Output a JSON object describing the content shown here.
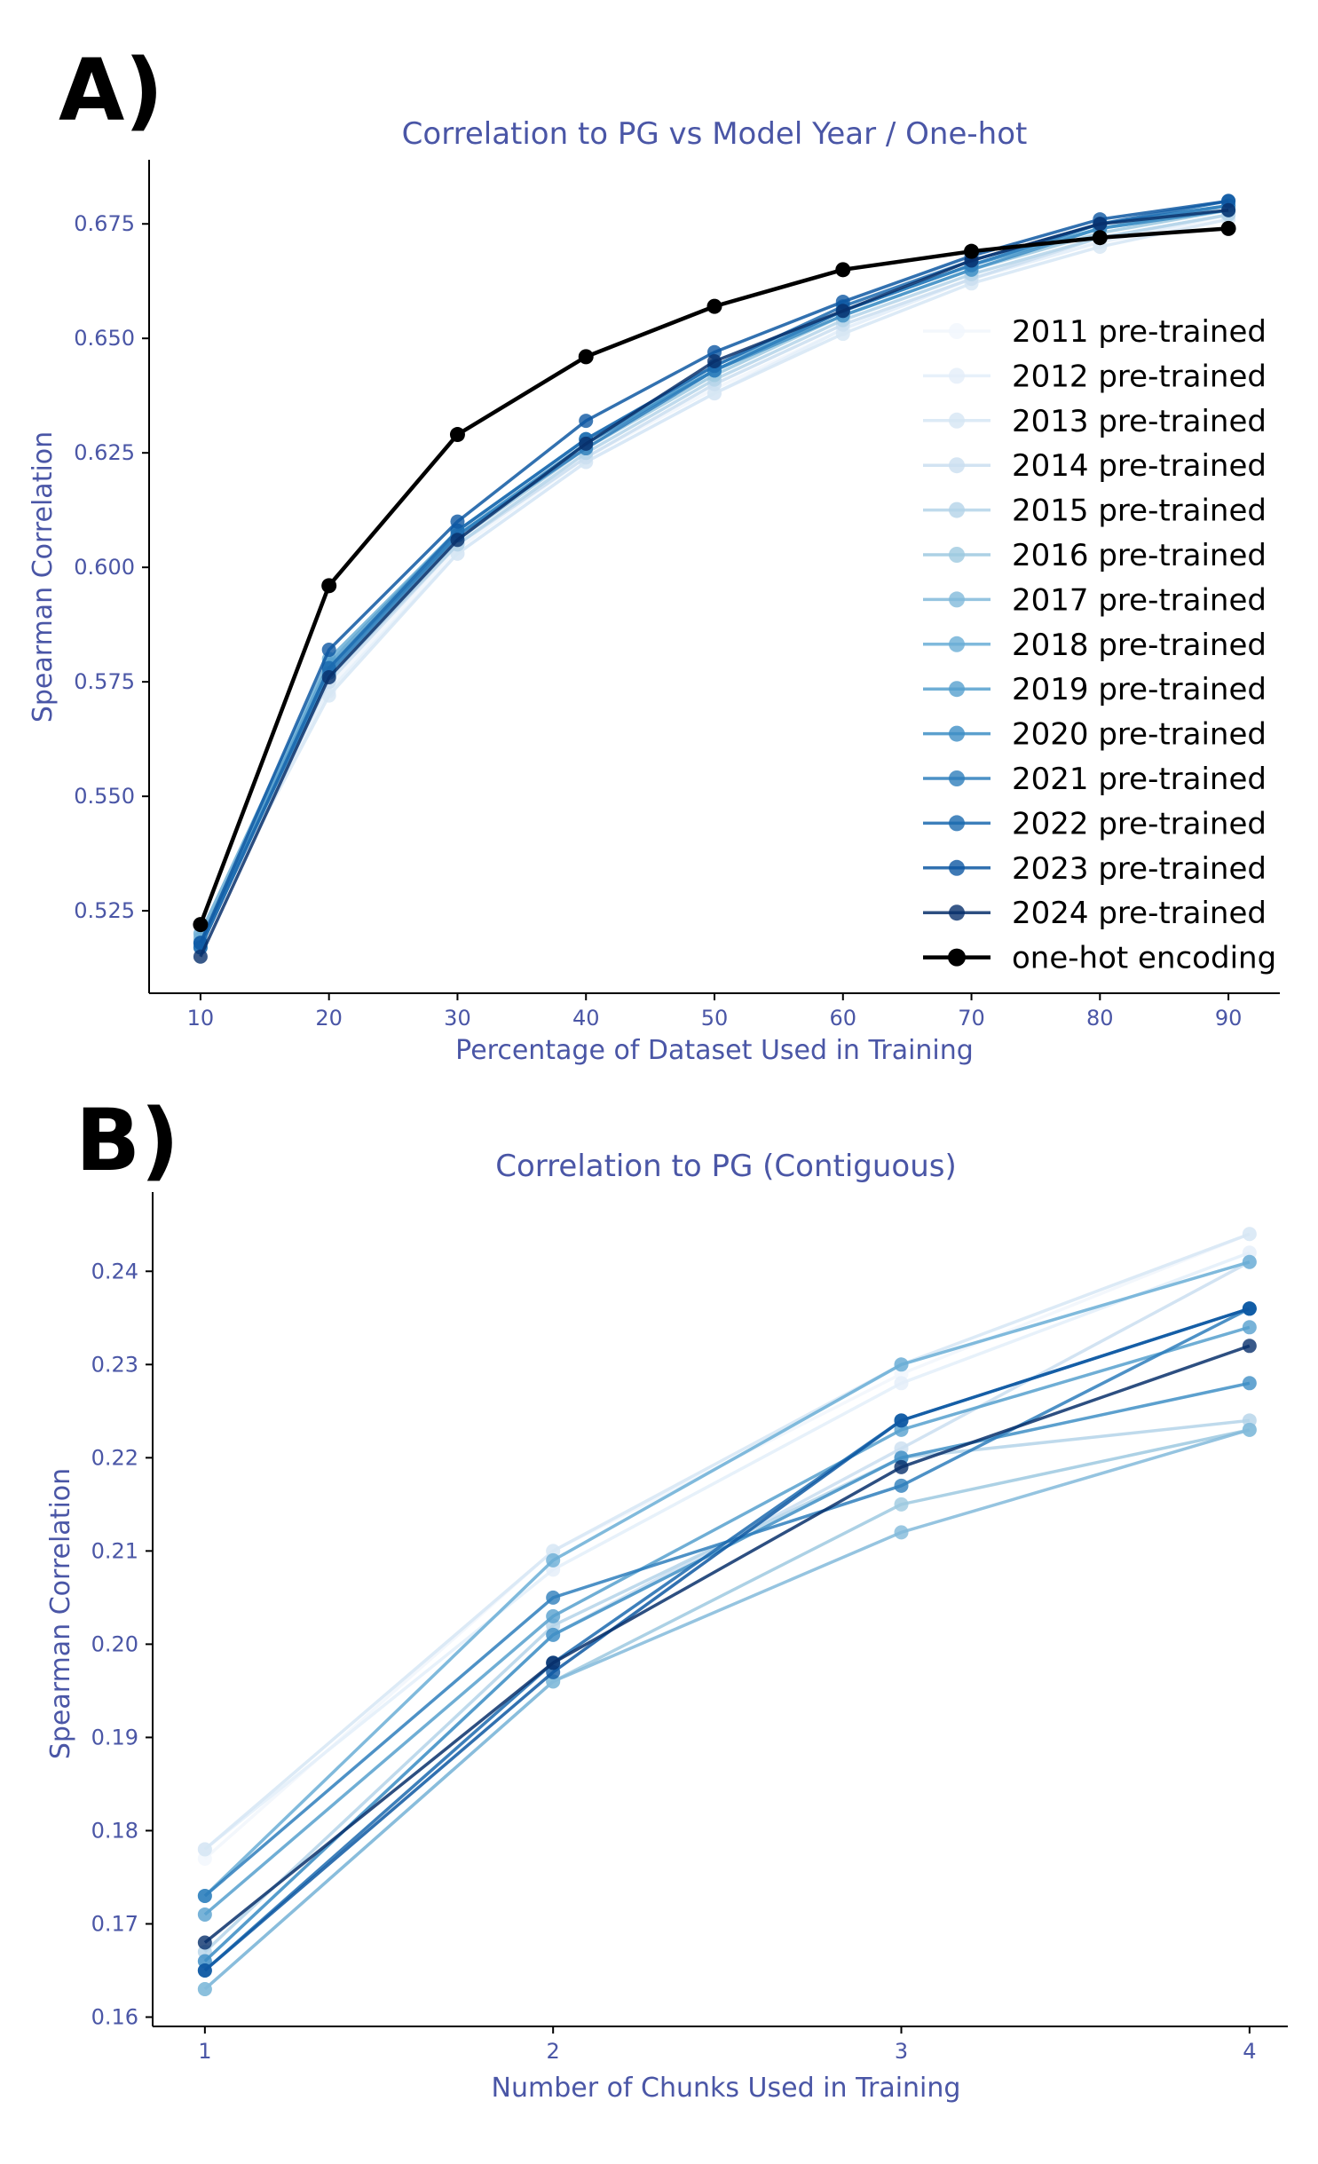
{
  "chart_data": [
    {
      "panel": "A)",
      "type": "line",
      "title": "Correlation to PG vs Model Year / One-hot",
      "xlabel": "Percentage of Dataset Used in Training",
      "ylabel": "Spearman Correlation",
      "x": [
        10,
        20,
        30,
        40,
        50,
        60,
        70,
        80,
        90
      ],
      "xticks": [
        "10",
        "20",
        "30",
        "40",
        "50",
        "60",
        "70",
        "80",
        "90"
      ],
      "yticks": [
        "0.525",
        "0.550",
        "0.575",
        "0.600",
        "0.625",
        "0.650",
        "0.675"
      ],
      "xlim": [
        6,
        94
      ],
      "ylim": [
        0.507,
        0.689
      ],
      "legend_position": "right",
      "series": [
        {
          "name": "2011 pre-trained",
          "color": "#f1f6fc",
          "values": [
            0.521,
            0.574,
            0.604,
            0.624,
            0.639,
            0.652,
            0.663,
            0.671,
            0.676
          ]
        },
        {
          "name": "2012 pre-trained",
          "color": "#e3eef9",
          "values": [
            0.52,
            0.573,
            0.603,
            0.623,
            0.638,
            0.652,
            0.663,
            0.671,
            0.677
          ]
        },
        {
          "name": "2013 pre-trained",
          "color": "#d6e6f4",
          "values": [
            0.519,
            0.572,
            0.603,
            0.623,
            0.638,
            0.651,
            0.662,
            0.67,
            0.676
          ]
        },
        {
          "name": "2014 pre-trained",
          "color": "#cadef0",
          "values": [
            0.519,
            0.575,
            0.605,
            0.624,
            0.64,
            0.653,
            0.663,
            0.672,
            0.677
          ]
        },
        {
          "name": "2015 pre-trained",
          "color": "#b4d3e9",
          "values": [
            0.518,
            0.576,
            0.605,
            0.625,
            0.641,
            0.654,
            0.664,
            0.672,
            0.677
          ]
        },
        {
          "name": "2016 pre-trained",
          "color": "#9dc9e0",
          "values": [
            0.518,
            0.577,
            0.606,
            0.626,
            0.642,
            0.655,
            0.665,
            0.673,
            0.678
          ]
        },
        {
          "name": "2017 pre-trained",
          "color": "#82badb",
          "values": [
            0.519,
            0.578,
            0.607,
            0.627,
            0.643,
            0.656,
            0.666,
            0.674,
            0.678
          ]
        },
        {
          "name": "2018 pre-trained",
          "color": "#6aaed6",
          "values": [
            0.52,
            0.58,
            0.608,
            0.628,
            0.644,
            0.656,
            0.666,
            0.675,
            0.679
          ]
        },
        {
          "name": "2019 pre-trained",
          "color": "#56a0ce",
          "values": [
            0.518,
            0.579,
            0.608,
            0.628,
            0.643,
            0.656,
            0.666,
            0.674,
            0.679
          ]
        },
        {
          "name": "2020 pre-trained",
          "color": "#3f8fc5",
          "values": [
            0.517,
            0.578,
            0.607,
            0.627,
            0.643,
            0.655,
            0.665,
            0.674,
            0.678
          ]
        },
        {
          "name": "2021 pre-trained",
          "color": "#2e7ebc",
          "values": [
            0.518,
            0.577,
            0.607,
            0.626,
            0.643,
            0.656,
            0.666,
            0.675,
            0.679
          ]
        },
        {
          "name": "2022 pre-trained",
          "color": "#1c6aaf",
          "values": [
            0.517,
            0.578,
            0.608,
            0.628,
            0.644,
            0.657,
            0.667,
            0.675,
            0.68
          ]
        },
        {
          "name": "2023 pre-trained",
          "color": "#0e58a2",
          "values": [
            0.518,
            0.582,
            0.61,
            0.632,
            0.647,
            0.658,
            0.668,
            0.676,
            0.68
          ]
        },
        {
          "name": "2024 pre-trained",
          "color": "#08306b",
          "values": [
            0.515,
            0.576,
            0.606,
            0.627,
            0.645,
            0.656,
            0.667,
            0.675,
            0.678
          ]
        },
        {
          "name": "one-hot encoding",
          "color": "#000000",
          "values": [
            0.522,
            0.596,
            0.629,
            0.646,
            0.657,
            0.665,
            0.669,
            0.672,
            0.674
          ]
        }
      ]
    },
    {
      "panel": "B)",
      "type": "line",
      "title": "Correlation to PG (Contiguous)",
      "xlabel": "Number of Chunks Used in Training",
      "ylabel": "Spearman Correlation",
      "x": [
        1,
        2,
        3,
        4
      ],
      "xticks": [
        "1",
        "2",
        "3",
        "4"
      ],
      "yticks": [
        "0.16",
        "0.17",
        "0.18",
        "0.19",
        "0.20",
        "0.21",
        "0.22",
        "0.23",
        "0.24"
      ],
      "xlim": [
        0.85,
        4.11
      ],
      "ylim": [
        0.159,
        0.2485
      ],
      "series": [
        {
          "color": "#f1f6fc",
          "values": [
            0.177,
            0.21,
            0.229,
            0.244
          ]
        },
        {
          "color": "#e3eef9",
          "values": [
            0.178,
            0.208,
            0.228,
            0.242
          ]
        },
        {
          "color": "#d6e6f4",
          "values": [
            0.178,
            0.21,
            0.23,
            0.244
          ]
        },
        {
          "color": "#cadef0",
          "values": [
            0.166,
            0.201,
            0.221,
            0.241
          ]
        },
        {
          "color": "#b4d3e9",
          "values": [
            0.167,
            0.202,
            0.22,
            0.224
          ]
        },
        {
          "color": "#9dc9e0",
          "values": [
            0.163,
            0.196,
            0.215,
            0.223
          ]
        },
        {
          "color": "#82badb",
          "values": [
            0.163,
            0.196,
            0.212,
            0.223
          ]
        },
        {
          "color": "#6aaed6",
          "values": [
            0.173,
            0.209,
            0.23,
            0.241
          ]
        },
        {
          "color": "#56a0ce",
          "values": [
            0.171,
            0.203,
            0.223,
            0.234
          ]
        },
        {
          "color": "#3f8fc5",
          "values": [
            0.166,
            0.201,
            0.22,
            0.228
          ]
        },
        {
          "color": "#2e7ebc",
          "values": [
            0.173,
            0.205,
            0.217,
            0.236
          ]
        },
        {
          "color": "#1c6aaf",
          "values": [
            0.165,
            0.198,
            0.224,
            0.236
          ]
        },
        {
          "color": "#0e58a2",
          "values": [
            0.165,
            0.197,
            0.224,
            0.236
          ]
        },
        {
          "color": "#08306b",
          "values": [
            0.168,
            0.198,
            0.219,
            0.232
          ]
        }
      ]
    }
  ]
}
